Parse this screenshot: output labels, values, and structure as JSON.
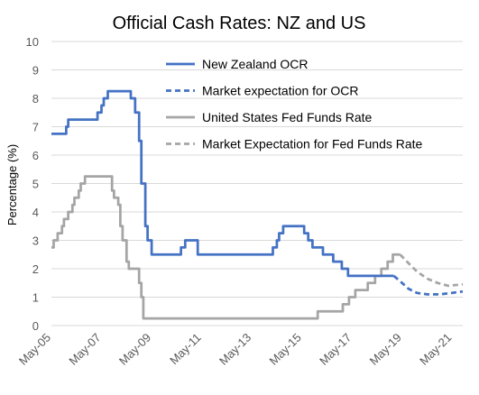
{
  "chart_data": {
    "type": "line",
    "title": "Official Cash Rates: NZ and US",
    "ylabel": "Percentage (%)",
    "xlabel": "",
    "ylim": [
      0,
      10
    ],
    "yticks": [
      0,
      1,
      2,
      3,
      4,
      5,
      6,
      7,
      8,
      9,
      10
    ],
    "xlim": [
      2005.33,
      2021.75
    ],
    "xticks": [
      {
        "label": "May-05",
        "value": 2005.33
      },
      {
        "label": "May-07",
        "value": 2007.33
      },
      {
        "label": "May-09",
        "value": 2009.33
      },
      {
        "label": "May-11",
        "value": 2011.33
      },
      {
        "label": "May-13",
        "value": 2013.33
      },
      {
        "label": "May-15",
        "value": 2015.33
      },
      {
        "label": "May-17",
        "value": 2017.33
      },
      {
        "label": "May-19",
        "value": 2019.33
      },
      {
        "label": "May-21",
        "value": 2021.33
      }
    ],
    "grid": "horizontal",
    "legend_position": "top-right",
    "series": [
      {
        "name": "New Zealand OCR",
        "color": "#4472C4",
        "style": "solid",
        "step": true,
        "points": [
          [
            2005.33,
            6.75
          ],
          [
            2005.92,
            7.0
          ],
          [
            2006.0,
            7.25
          ],
          [
            2007.17,
            7.5
          ],
          [
            2007.33,
            7.75
          ],
          [
            2007.42,
            8.0
          ],
          [
            2007.58,
            8.25
          ],
          [
            2008.5,
            8.0
          ],
          [
            2008.67,
            7.5
          ],
          [
            2008.83,
            6.5
          ],
          [
            2008.92,
            5.0
          ],
          [
            2009.08,
            3.5
          ],
          [
            2009.17,
            3.0
          ],
          [
            2009.33,
            2.5
          ],
          [
            2010.5,
            2.75
          ],
          [
            2010.67,
            3.0
          ],
          [
            2011.17,
            2.5
          ],
          [
            2014.17,
            2.75
          ],
          [
            2014.33,
            3.0
          ],
          [
            2014.42,
            3.25
          ],
          [
            2014.58,
            3.5
          ],
          [
            2015.42,
            3.25
          ],
          [
            2015.58,
            3.0
          ],
          [
            2015.75,
            2.75
          ],
          [
            2016.17,
            2.5
          ],
          [
            2016.58,
            2.25
          ],
          [
            2016.92,
            2.0
          ],
          [
            2017.17,
            1.75
          ],
          [
            2019.0,
            1.75
          ]
        ]
      },
      {
        "name": "Market expectation for OCR",
        "color": "#4472C4",
        "style": "dashed",
        "points": [
          [
            2019.0,
            1.75
          ],
          [
            2019.33,
            1.5
          ],
          [
            2019.58,
            1.3
          ],
          [
            2019.92,
            1.15
          ],
          [
            2020.33,
            1.1
          ],
          [
            2020.83,
            1.1
          ],
          [
            2021.33,
            1.15
          ],
          [
            2021.75,
            1.2
          ]
        ]
      },
      {
        "name": "United States Fed Funds Rate",
        "color": "#A5A5A5",
        "style": "solid",
        "step": true,
        "points": [
          [
            2005.33,
            2.75
          ],
          [
            2005.42,
            3.0
          ],
          [
            2005.58,
            3.25
          ],
          [
            2005.75,
            3.5
          ],
          [
            2005.83,
            3.75
          ],
          [
            2006.0,
            4.0
          ],
          [
            2006.17,
            4.25
          ],
          [
            2006.25,
            4.5
          ],
          [
            2006.42,
            4.75
          ],
          [
            2006.5,
            5.0
          ],
          [
            2006.67,
            5.25
          ],
          [
            2007.75,
            4.75
          ],
          [
            2007.83,
            4.5
          ],
          [
            2008.0,
            4.25
          ],
          [
            2008.08,
            3.5
          ],
          [
            2008.17,
            3.0
          ],
          [
            2008.33,
            2.25
          ],
          [
            2008.42,
            2.0
          ],
          [
            2008.83,
            1.5
          ],
          [
            2008.92,
            1.0
          ],
          [
            2009.0,
            0.25
          ],
          [
            2015.96,
            0.5
          ],
          [
            2016.96,
            0.75
          ],
          [
            2017.21,
            1.0
          ],
          [
            2017.46,
            1.25
          ],
          [
            2017.96,
            1.5
          ],
          [
            2018.25,
            1.75
          ],
          [
            2018.5,
            2.0
          ],
          [
            2018.75,
            2.25
          ],
          [
            2018.96,
            2.5
          ],
          [
            2019.25,
            2.5
          ]
        ]
      },
      {
        "name": "Market Expectation for Fed Funds Rate",
        "color": "#A5A5A5",
        "style": "dashed",
        "points": [
          [
            2019.25,
            2.5
          ],
          [
            2019.58,
            2.2
          ],
          [
            2019.92,
            1.9
          ],
          [
            2020.33,
            1.65
          ],
          [
            2020.75,
            1.5
          ],
          [
            2021.17,
            1.4
          ],
          [
            2021.75,
            1.45
          ]
        ]
      }
    ]
  }
}
